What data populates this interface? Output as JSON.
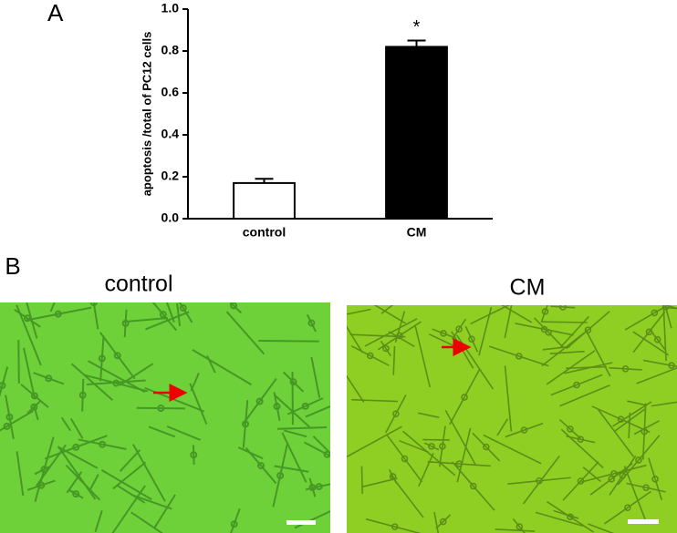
{
  "chart_data": {
    "type": "bar",
    "panel_label": "A",
    "y_label": "apoptosis /total of PC12 cells",
    "categories": [
      "control",
      "CM"
    ],
    "values": [
      0.17,
      0.82
    ],
    "errors": [
      0.02,
      0.03
    ],
    "colors": [
      "#ffffff",
      "#000000"
    ],
    "annotation": "*",
    "annotation_category": 1,
    "ylim": [
      0,
      1
    ],
    "yticks": [
      {
        "value": 0,
        "label": "0.0"
      },
      0.2,
      0.4,
      0.6,
      0.8,
      {
        "value": 1,
        "label": "1.0"
      }
    ]
  },
  "panel_b": {
    "label": "B",
    "images": [
      {
        "title": "control"
      },
      {
        "title": "CM"
      }
    ]
  }
}
